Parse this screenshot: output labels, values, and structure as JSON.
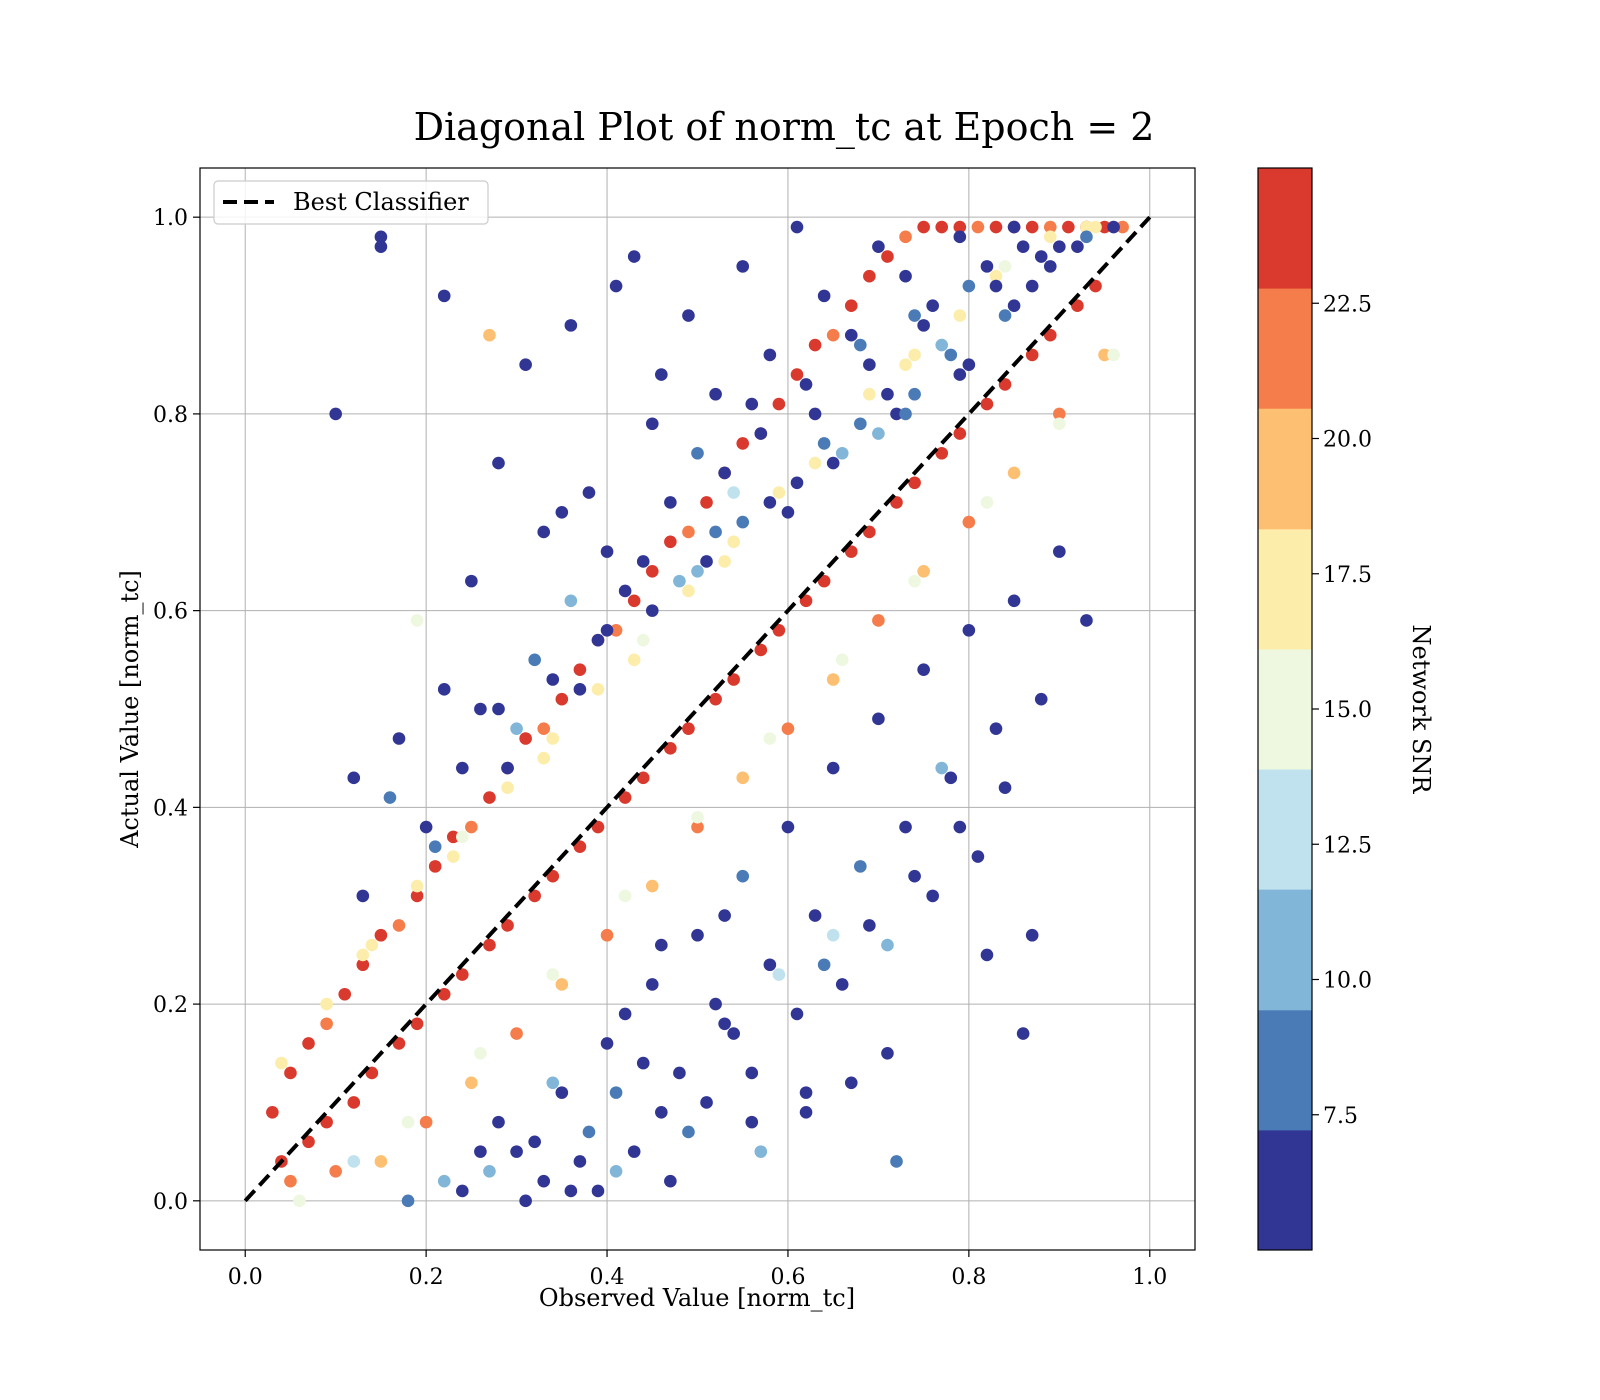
{
  "chart_data": {
    "type": "scatter",
    "title": "Diagonal Plot of norm_tc at Epoch = 2",
    "xlabel": "Observed Value [norm_tc]",
    "ylabel": "Actual Value [norm_tc]",
    "xlim": [
      -0.05,
      1.05
    ],
    "ylim": [
      -0.05,
      1.05
    ],
    "xticks": [
      0.0,
      0.2,
      0.4,
      0.6,
      0.8,
      1.0
    ],
    "yticks": [
      0.0,
      0.2,
      0.4,
      0.6,
      0.8,
      1.0
    ],
    "xtick_labels": [
      "0.0",
      "0.2",
      "0.4",
      "0.6",
      "0.8",
      "1.0"
    ],
    "ytick_labels": [
      "0.0",
      "0.2",
      "0.4",
      "0.6",
      "0.8",
      "1.0"
    ],
    "grid": true,
    "legend": {
      "position": "top-left",
      "entries": [
        "Best Classifier"
      ]
    },
    "reference_line": {
      "name": "Best Classifier",
      "x": [
        0.0,
        1.0
      ],
      "y": [
        0.0,
        1.0
      ],
      "style": "dashed",
      "color": "#000000"
    },
    "colorbar": {
      "label": "Network SNR",
      "range": [
        5.0,
        25.0
      ],
      "levels": [
        5.0,
        7.22,
        9.44,
        11.67,
        13.89,
        16.11,
        18.33,
        20.56,
        22.78,
        25.0
      ],
      "colors": [
        "#313695",
        "#4a7bb7",
        "#82b6d8",
        "#bfe2ee",
        "#eef8e0",
        "#fdedab",
        "#fdbf71",
        "#f57d4b",
        "#d93a2d",
        "#a50026"
      ],
      "ticks": [
        7.5,
        10.0,
        12.5,
        15.0,
        17.5,
        20.0,
        22.5
      ],
      "tick_labels": [
        "7.5",
        "10.0",
        "12.5",
        "15.0",
        "17.5",
        "20.0",
        "22.5"
      ]
    },
    "series": [
      {
        "x": [
          0.03,
          0.05,
          0.07,
          0.09,
          0.11,
          0.13,
          0.15,
          0.17,
          0.19,
          0.21,
          0.23,
          0.25,
          0.27,
          0.29,
          0.31,
          0.33,
          0.35,
          0.37,
          0.39,
          0.41,
          0.43,
          0.45,
          0.47,
          0.49,
          0.51,
          0.53,
          0.55,
          0.57,
          0.59,
          0.61,
          0.63,
          0.65,
          0.67,
          0.69,
          0.71,
          0.73,
          0.75,
          0.77,
          0.79,
          0.81,
          0.83,
          0.85,
          0.87,
          0.89,
          0.91,
          0.93,
          0.95,
          0.97,
          0.05,
          0.1,
          0.15,
          0.2,
          0.25,
          0.3,
          0.35,
          0.4,
          0.45,
          0.5,
          0.55,
          0.6,
          0.65,
          0.7,
          0.75,
          0.8,
          0.85,
          0.9,
          0.95,
          0.07,
          0.12,
          0.17,
          0.22,
          0.27,
          0.32,
          0.37,
          0.42,
          0.47,
          0.52,
          0.57,
          0.62,
          0.67,
          0.72,
          0.77,
          0.82,
          0.87,
          0.92,
          0.04,
          0.09,
          0.14,
          0.19,
          0.24,
          0.29,
          0.34,
          0.39,
          0.44,
          0.49,
          0.54,
          0.59,
          0.64,
          0.69,
          0.74,
          0.79,
          0.84,
          0.89,
          0.94
        ],
        "y": [
          0.09,
          0.13,
          0.16,
          0.18,
          0.21,
          0.24,
          0.27,
          0.28,
          0.31,
          0.34,
          0.37,
          0.38,
          0.41,
          0.44,
          0.47,
          0.48,
          0.51,
          0.54,
          0.57,
          0.58,
          0.61,
          0.64,
          0.67,
          0.68,
          0.71,
          0.74,
          0.77,
          0.78,
          0.81,
          0.84,
          0.87,
          0.88,
          0.91,
          0.94,
          0.96,
          0.98,
          0.99,
          0.99,
          0.99,
          0.99,
          0.99,
          0.99,
          0.99,
          0.99,
          0.99,
          0.99,
          0.99,
          0.99,
          0.02,
          0.03,
          0.04,
          0.08,
          0.12,
          0.17,
          0.22,
          0.27,
          0.32,
          0.38,
          0.43,
          0.48,
          0.53,
          0.59,
          0.64,
          0.69,
          0.74,
          0.8,
          0.86,
          0.06,
          0.1,
          0.16,
          0.21,
          0.26,
          0.31,
          0.36,
          0.41,
          0.46,
          0.51,
          0.56,
          0.61,
          0.66,
          0.71,
          0.76,
          0.81,
          0.86,
          0.91,
          0.04,
          0.08,
          0.13,
          0.18,
          0.23,
          0.28,
          0.33,
          0.38,
          0.43,
          0.48,
          0.53,
          0.58,
          0.63,
          0.68,
          0.73,
          0.78,
          0.83,
          0.88,
          0.93
        ],
        "snr": [
          24,
          23,
          24,
          22,
          24,
          23,
          24,
          22,
          24,
          23,
          24,
          22,
          24,
          23,
          24,
          22,
          24,
          23,
          24,
          22,
          24,
          23,
          24,
          22,
          24,
          23,
          24,
          22,
          24,
          23,
          24,
          22,
          24,
          23,
          24,
          22,
          24,
          23,
          24,
          22,
          24,
          23,
          24,
          22,
          24,
          23,
          24,
          22,
          21,
          21,
          20,
          21,
          20,
          21,
          20,
          21,
          20,
          21,
          20,
          21,
          20,
          21,
          20,
          21,
          20,
          21,
          20,
          24,
          24,
          24,
          24,
          24,
          24,
          24,
          24,
          24,
          24,
          24,
          24,
          24,
          24,
          24,
          24,
          24,
          24,
          24,
          24,
          24,
          24,
          24,
          24,
          24,
          24,
          24,
          24,
          24,
          24,
          24,
          24,
          24,
          24,
          24,
          24,
          24
        ]
      },
      {
        "x": [
          0.09,
          0.14,
          0.19,
          0.24,
          0.29,
          0.34,
          0.39,
          0.44,
          0.49,
          0.54,
          0.59,
          0.64,
          0.69,
          0.74,
          0.79,
          0.84,
          0.89,
          0.94,
          0.06,
          0.12,
          0.18,
          0.26,
          0.34,
          0.42,
          0.5,
          0.58,
          0.66,
          0.74,
          0.82,
          0.9,
          0.96,
          0.04,
          0.13,
          0.23,
          0.33,
          0.43,
          0.53,
          0.63,
          0.73,
          0.83,
          0.93
        ],
        "y": [
          0.2,
          0.26,
          0.32,
          0.37,
          0.42,
          0.47,
          0.52,
          0.57,
          0.62,
          0.67,
          0.72,
          0.77,
          0.82,
          0.86,
          0.9,
          0.95,
          0.98,
          0.99,
          0.0,
          0.04,
          0.08,
          0.15,
          0.23,
          0.31,
          0.39,
          0.47,
          0.55,
          0.63,
          0.71,
          0.79,
          0.86,
          0.14,
          0.25,
          0.35,
          0.45,
          0.55,
          0.65,
          0.75,
          0.85,
          0.94,
          0.99
        ],
        "snr": [
          18,
          17,
          18,
          16,
          18,
          17,
          18,
          16,
          18,
          17,
          18,
          16,
          18,
          17,
          18,
          16,
          18,
          17,
          14,
          13,
          15,
          16,
          14,
          15,
          16,
          14,
          15,
          16,
          14,
          15,
          16,
          18,
          17,
          18,
          17,
          18,
          17,
          18,
          17,
          18,
          17
        ]
      },
      {
        "x": [
          0.1,
          0.15,
          0.15,
          0.27,
          0.19,
          0.22,
          0.31,
          0.36,
          0.41,
          0.43,
          0.46,
          0.49,
          0.52,
          0.55,
          0.58,
          0.61,
          0.64,
          0.67,
          0.7,
          0.73,
          0.76,
          0.79,
          0.82,
          0.85,
          0.88,
          0.9,
          0.28,
          0.33,
          0.38,
          0.45,
          0.5,
          0.56,
          0.62,
          0.68,
          0.74,
          0.8,
          0.86,
          0.12,
          0.17,
          0.22,
          0.25,
          0.35,
          0.4,
          0.47,
          0.53,
          0.57,
          0.63,
          0.69,
          0.75,
          0.83,
          0.89,
          0.93,
          0.2,
          0.3,
          0.4,
          0.5,
          0.6,
          0.7,
          0.8,
          0.26,
          0.32,
          0.42,
          0.52,
          0.66,
          0.72,
          0.78,
          0.84,
          0.36,
          0.44,
          0.54,
          0.64,
          0.74,
          0.24,
          0.34,
          0.48,
          0.58,
          0.68,
          0.13,
          0.21,
          0.29,
          0.37,
          0.45,
          0.55,
          0.65,
          0.71,
          0.77,
          0.87,
          0.92,
          0.16,
          0.28,
          0.39,
          0.51,
          0.61,
          0.73,
          0.79,
          0.85,
          0.96
        ],
        "y": [
          0.8,
          0.98,
          0.97,
          0.88,
          0.59,
          0.92,
          0.85,
          0.89,
          0.93,
          0.96,
          0.84,
          0.9,
          0.82,
          0.95,
          0.86,
          0.99,
          0.92,
          0.88,
          0.97,
          0.94,
          0.91,
          0.98,
          0.95,
          0.99,
          0.96,
          0.97,
          0.75,
          0.68,
          0.72,
          0.79,
          0.76,
          0.81,
          0.83,
          0.87,
          0.9,
          0.93,
          0.97,
          0.43,
          0.47,
          0.52,
          0.63,
          0.7,
          0.66,
          0.71,
          0.74,
          0.78,
          0.8,
          0.85,
          0.89,
          0.93,
          0.95,
          0.98,
          0.38,
          0.48,
          0.58,
          0.64,
          0.7,
          0.78,
          0.85,
          0.5,
          0.55,
          0.62,
          0.68,
          0.76,
          0.8,
          0.86,
          0.9,
          0.61,
          0.65,
          0.72,
          0.77,
          0.82,
          0.44,
          0.53,
          0.63,
          0.71,
          0.79,
          0.31,
          0.36,
          0.44,
          0.52,
          0.6,
          0.69,
          0.75,
          0.82,
          0.87,
          0.93,
          0.97,
          0.41,
          0.5,
          0.57,
          0.65,
          0.73,
          0.8,
          0.84,
          0.91,
          0.99
        ],
        "snr": [
          6,
          6,
          6,
          19,
          14,
          6,
          6,
          6,
          6,
          6,
          6,
          6,
          6,
          6,
          6,
          6,
          6,
          6,
          6,
          6,
          6,
          6,
          6,
          6,
          6,
          6,
          7,
          7,
          7,
          7,
          8,
          7,
          7,
          8,
          9,
          8,
          7,
          6,
          6,
          6,
          6,
          6,
          7,
          6,
          6,
          7,
          6,
          7,
          6,
          6,
          6,
          8,
          7,
          10,
          7,
          11,
          7,
          10,
          7,
          7,
          9,
          7,
          8,
          10,
          7,
          8,
          9,
          11,
          7,
          12,
          8,
          9,
          6,
          7,
          10,
          7,
          8,
          6,
          8,
          6,
          7,
          6,
          9,
          7,
          6,
          10,
          7,
          7,
          8,
          6,
          6,
          7,
          6,
          8,
          6,
          7,
          6
        ]
      },
      {
        "x": [
          0.3,
          0.35,
          0.4,
          0.45,
          0.5,
          0.55,
          0.6,
          0.65,
          0.7,
          0.75,
          0.8,
          0.85,
          0.9,
          0.33,
          0.38,
          0.43,
          0.48,
          0.53,
          0.58,
          0.63,
          0.68,
          0.73,
          0.78,
          0.83,
          0.88,
          0.93,
          0.36,
          0.41,
          0.46,
          0.51,
          0.56,
          0.61,
          0.66,
          0.71,
          0.76,
          0.81,
          0.86,
          0.22,
          0.26,
          0.31,
          0.39,
          0.47,
          0.57,
          0.62,
          0.67,
          0.72,
          0.82,
          0.87,
          0.42,
          0.52,
          0.59,
          0.69,
          0.74,
          0.79,
          0.84,
          0.28,
          0.34,
          0.44,
          0.54,
          0.64,
          0.77,
          0.49,
          0.37,
          0.27,
          0.32,
          0.24,
          0.18,
          0.62,
          0.71,
          0.41,
          0.56,
          0.65,
          0.53,
          0.46
        ],
        "y": [
          0.05,
          0.11,
          0.16,
          0.22,
          0.27,
          0.33,
          0.38,
          0.44,
          0.49,
          0.54,
          0.58,
          0.61,
          0.66,
          0.02,
          0.07,
          0.05,
          0.13,
          0.18,
          0.24,
          0.29,
          0.34,
          0.38,
          0.43,
          0.48,
          0.51,
          0.59,
          0.01,
          0.03,
          0.09,
          0.1,
          0.13,
          0.19,
          0.22,
          0.26,
          0.31,
          0.35,
          0.17,
          0.02,
          0.05,
          0.0,
          0.01,
          0.02,
          0.05,
          0.09,
          0.12,
          0.04,
          0.25,
          0.27,
          0.19,
          0.2,
          0.23,
          0.28,
          0.33,
          0.38,
          0.42,
          0.08,
          0.12,
          0.14,
          0.17,
          0.24,
          0.44,
          0.07,
          0.04,
          0.03,
          0.06,
          0.01,
          0.0,
          0.11,
          0.15,
          0.11,
          0.08,
          0.27,
          0.29,
          0.26
        ],
        "snr": [
          6,
          7,
          6,
          7,
          6,
          8,
          6,
          7,
          6,
          7,
          6,
          7,
          6,
          6,
          9,
          6,
          7,
          6,
          7,
          6,
          8,
          6,
          7,
          6,
          7,
          6,
          6,
          11,
          6,
          7,
          6,
          7,
          6,
          10,
          6,
          7,
          6,
          10,
          6,
          7,
          6,
          7,
          11,
          6,
          7,
          8,
          6,
          6,
          7,
          6,
          12,
          6,
          7,
          6,
          6,
          6,
          10,
          7,
          6,
          8,
          11,
          8,
          6,
          11,
          6,
          6,
          8,
          6,
          7,
          8,
          6,
          13,
          7,
          6
        ]
      }
    ]
  }
}
